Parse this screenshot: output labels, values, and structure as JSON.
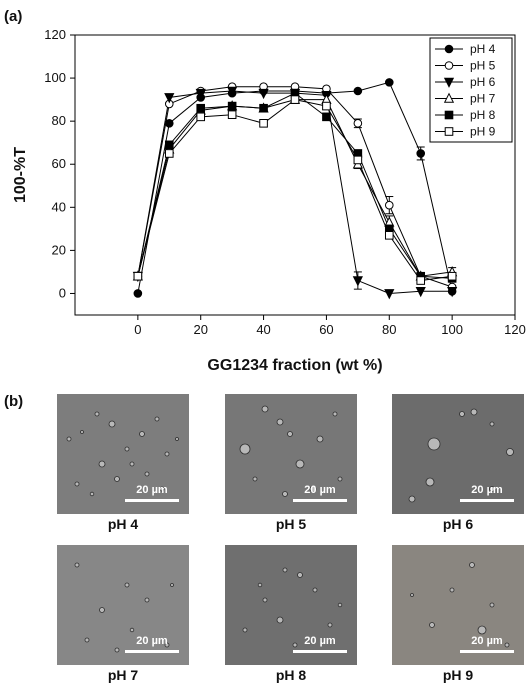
{
  "panel_a": {
    "label": "(a)"
  },
  "panel_b": {
    "label": "(b)"
  },
  "chart_data": {
    "type": "line",
    "xlabel": "GG1234 fraction (wt %)",
    "ylabel": "100-%T",
    "xlim": [
      -20,
      120
    ],
    "ylim": [
      -10,
      120
    ],
    "xticks": [
      0,
      20,
      40,
      60,
      80,
      100,
      120
    ],
    "yticks": [
      0,
      20,
      40,
      60,
      80,
      100,
      120
    ],
    "legend_position": "top-right",
    "grid": false,
    "series": [
      {
        "name": "pH 4",
        "marker": "circle-filled",
        "x": [
          0,
          10,
          20,
          30,
          40,
          50,
          60,
          70,
          80,
          90,
          100
        ],
        "y": [
          0,
          79,
          91,
          93,
          94,
          94,
          93,
          94,
          98,
          65,
          1
        ],
        "err": [
          0,
          0,
          0,
          0,
          0,
          0,
          0,
          0,
          0,
          3,
          0
        ]
      },
      {
        "name": "pH 5",
        "marker": "circle-open",
        "x": [
          0,
          10,
          20,
          30,
          40,
          50,
          60,
          70,
          80,
          90,
          100
        ],
        "y": [
          8,
          88,
          94,
          96,
          96,
          96,
          95,
          79,
          41,
          8,
          3
        ],
        "err": [
          0,
          0,
          0,
          0,
          0,
          0,
          0,
          2,
          4,
          0,
          0
        ]
      },
      {
        "name": "pH 6",
        "marker": "triangle-down-filled",
        "x": [
          0,
          10,
          20,
          30,
          40,
          50,
          60,
          70,
          80,
          90,
          100
        ],
        "y": [
          8,
          91,
          93,
          94,
          93,
          93,
          92,
          6,
          0,
          1,
          1
        ],
        "err": [
          0,
          0,
          0,
          0,
          0,
          0,
          0,
          4,
          0,
          0,
          0
        ]
      },
      {
        "name": "pH 7",
        "marker": "triangle-up-open",
        "x": [
          0,
          10,
          20,
          30,
          40,
          50,
          60,
          70,
          80,
          90,
          100
        ],
        "y": [
          8,
          67,
          85,
          87,
          86,
          90,
          90,
          60,
          33,
          8,
          10
        ],
        "err": [
          0,
          0,
          0,
          0,
          0,
          0,
          0,
          2,
          3,
          0,
          2
        ]
      },
      {
        "name": "pH 8",
        "marker": "square-filled",
        "x": [
          0,
          10,
          20,
          30,
          40,
          50,
          60,
          70,
          80,
          90,
          100
        ],
        "y": [
          8,
          69,
          86,
          87,
          86,
          93,
          82,
          65,
          30,
          8,
          7
        ],
        "err": [
          0,
          0,
          0,
          0,
          0,
          0,
          0,
          0,
          0,
          0,
          0
        ]
      },
      {
        "name": "pH 9",
        "marker": "square-open",
        "x": [
          0,
          10,
          20,
          30,
          40,
          50,
          60,
          70,
          80,
          90,
          100
        ],
        "y": [
          8,
          65,
          82,
          83,
          79,
          90,
          87,
          62,
          27,
          6,
          8
        ],
        "err": [
          0,
          0,
          0,
          0,
          0,
          0,
          0,
          0,
          0,
          0,
          0
        ]
      }
    ]
  },
  "micrographs": [
    {
      "caption": "pH 4",
      "scale_bar": "20 µm",
      "tone": "#7d7d7d"
    },
    {
      "caption": "pH 5",
      "scale_bar": "20 µm",
      "tone": "#777777"
    },
    {
      "caption": "pH 6",
      "scale_bar": "20 µm",
      "tone": "#6c6c6c"
    },
    {
      "caption": "pH 7",
      "scale_bar": "20 µm",
      "tone": "#878787"
    },
    {
      "caption": "pH 8",
      "scale_bar": "20 µm",
      "tone": "#6f6f6f"
    },
    {
      "caption": "pH 9",
      "scale_bar": "20 µm",
      "tone": "#8a8680"
    }
  ]
}
